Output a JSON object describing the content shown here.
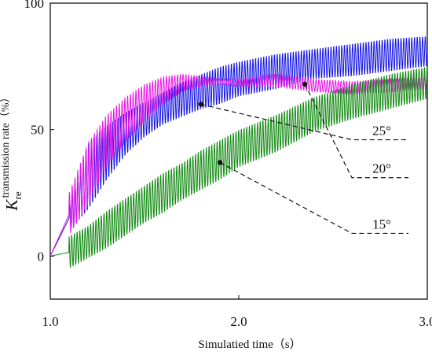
{
  "chart_data": {
    "type": "line",
    "title": "",
    "xlabel": "Simulatied time（s）",
    "ylabel_main": "K",
    "ylabel_sub": "re",
    "ylabel_rest": "transmission rate（%）",
    "xlim": [
      1.0,
      3.0
    ],
    "ylim": [
      -17,
      100
    ],
    "xticks": [
      "1.0",
      "2.0",
      "3.0"
    ],
    "yticks": [
      "0",
      "50",
      "100"
    ],
    "grid": false,
    "series": [
      {
        "name": "25°",
        "color": "#1414e6",
        "onset": 1.1,
        "freq": 70,
        "x": [
          1.0,
          1.1,
          1.2,
          1.3,
          1.4,
          1.5,
          1.6,
          1.7,
          1.8,
          1.9,
          2.0,
          2.2,
          2.4,
          2.6,
          2.8,
          3.0
        ],
        "upper": [
          0,
          20,
          45,
          52,
          57,
          61,
          65,
          69,
          72,
          75,
          77,
          80,
          82,
          84,
          86,
          87
        ],
        "lower": [
          0,
          10,
          18,
          30,
          40,
          47,
          52,
          55,
          58,
          60,
          63,
          66,
          70,
          71,
          73,
          75
        ]
      },
      {
        "name": "20°",
        "color": "#e619e6",
        "onset": 1.1,
        "freq": 68,
        "x": [
          1.0,
          1.1,
          1.2,
          1.3,
          1.4,
          1.5,
          1.6,
          1.7,
          1.8,
          1.9,
          2.0,
          2.2,
          2.4,
          2.6,
          2.8,
          3.0
        ],
        "upper": [
          0,
          25,
          45,
          56,
          63,
          68,
          71,
          72,
          71,
          70,
          70,
          72,
          70,
          69,
          70,
          71
        ],
        "lower": [
          0,
          8,
          20,
          35,
          45,
          53,
          60,
          65,
          67,
          68,
          67,
          67,
          65,
          64,
          65,
          66
        ]
      },
      {
        "name": "15°",
        "color": "#128a12",
        "onset": 1.1,
        "freq": 70,
        "x": [
          1.0,
          1.1,
          1.2,
          1.3,
          1.4,
          1.5,
          1.6,
          1.7,
          1.8,
          1.9,
          2.0,
          2.2,
          2.4,
          2.6,
          2.8,
          3.0
        ],
        "upper": [
          0,
          8,
          12,
          18,
          23,
          28,
          33,
          37,
          42,
          46,
          50,
          56,
          63,
          68,
          72,
          75
        ],
        "lower": [
          0,
          -5,
          -1,
          3,
          8,
          13,
          17,
          22,
          26,
          30,
          35,
          41,
          49,
          54,
          58,
          62
        ]
      }
    ],
    "annotations": [
      {
        "label": "25°",
        "point": [
          1.8,
          60
        ],
        "elbow": [
          2.6,
          46
        ],
        "end": [
          2.9,
          46
        ]
      },
      {
        "label": "20°",
        "point": [
          2.35,
          68
        ],
        "elbow": [
          2.6,
          31
        ],
        "end": [
          2.9,
          31
        ]
      },
      {
        "label": "15°",
        "point": [
          1.9,
          37
        ],
        "elbow": [
          2.6,
          9
        ],
        "end": [
          2.9,
          9
        ]
      }
    ]
  }
}
